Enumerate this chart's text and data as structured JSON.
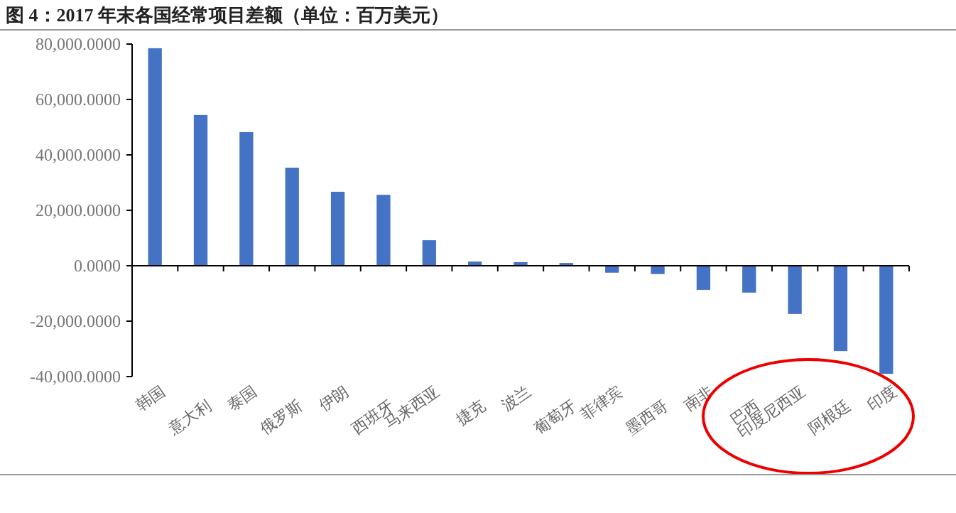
{
  "chart_data": {
    "type": "bar",
    "title": "图 4：2017 年末各国经常项目差额（单位：百万美元）",
    "categories": [
      "韩国",
      "意大利",
      "泰国",
      "俄罗斯",
      "伊朗",
      "西班牙",
      "马来西亚",
      "捷克",
      "波兰",
      "葡萄牙",
      "菲律宾",
      "墨西哥",
      "南非",
      "巴西",
      "印度尼西亚",
      "阿根廷",
      "印度"
    ],
    "values": [
      78500,
      54400,
      48200,
      35400,
      26700,
      25600,
      9200,
      1500,
      1300,
      1000,
      -2500,
      -3000,
      -8700,
      -9700,
      -17400,
      -30800,
      -39000
    ],
    "color": "#4472c4",
    "ylim": [
      -40000,
      80000
    ],
    "yticks": [
      {
        "value": -40000,
        "label": "-40,000.0000"
      },
      {
        "value": -20000,
        "label": "-20,000.0000"
      },
      {
        "value": 0,
        "label": "0.0000"
      },
      {
        "value": 20000,
        "label": "20,000.0000"
      },
      {
        "value": 40000,
        "label": "40,000.0000"
      },
      {
        "value": 60000,
        "label": "60,000.0000"
      },
      {
        "value": 80000,
        "label": "80,000.0000"
      }
    ]
  }
}
